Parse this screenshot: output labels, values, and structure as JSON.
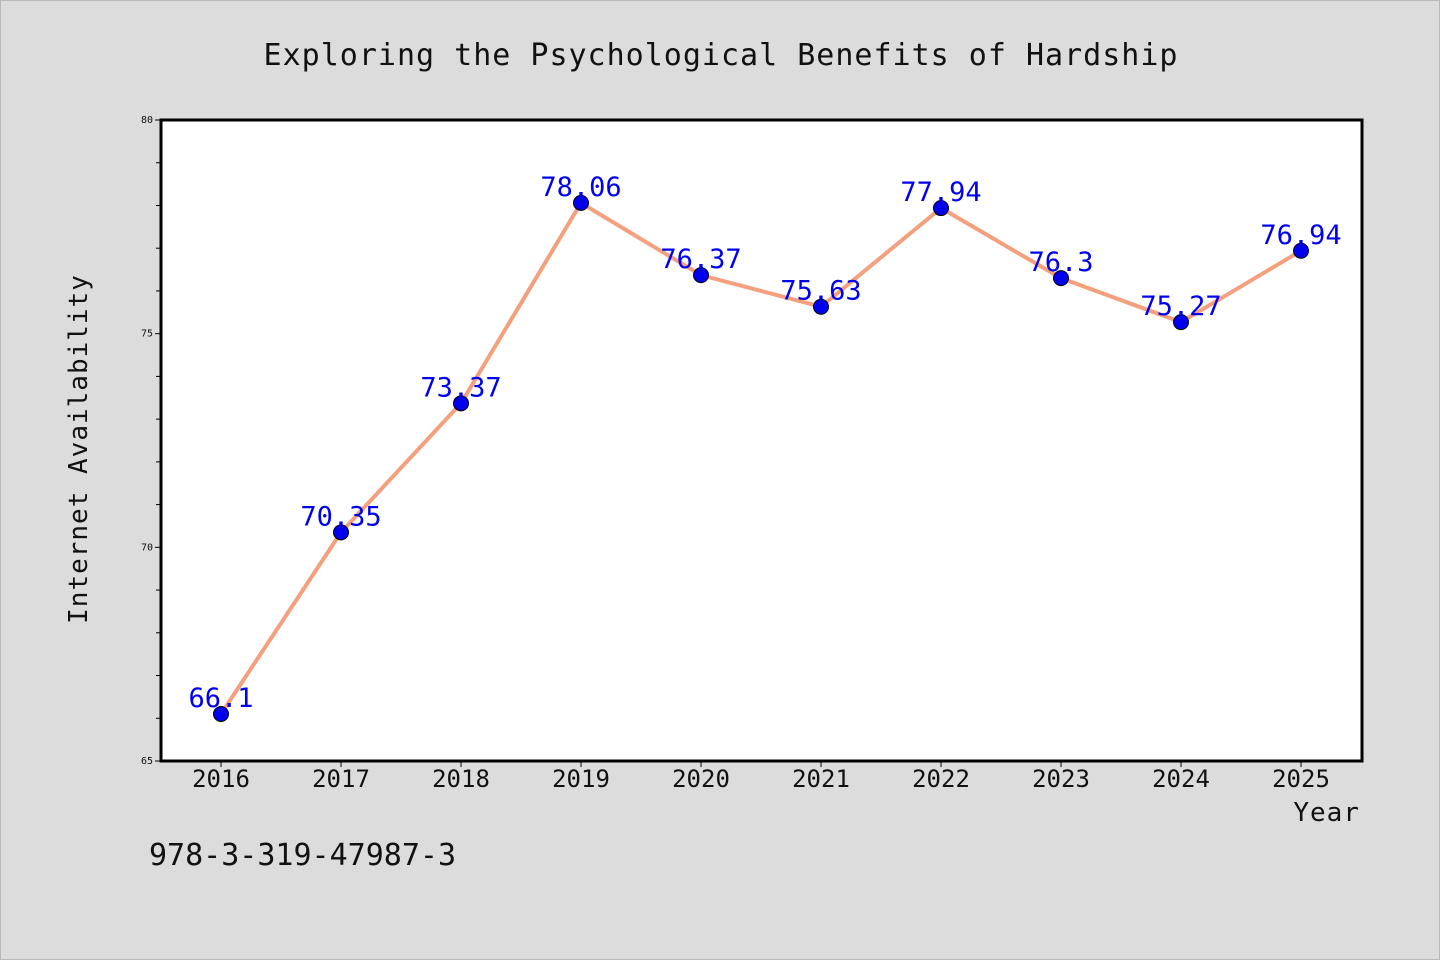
{
  "chart_data": {
    "type": "line",
    "title": "Exploring the Psychological Benefits of Hardship",
    "xlabel": "Year",
    "ylabel": "Internet Availability",
    "categories": [
      "2016",
      "2017",
      "2018",
      "2019",
      "2020",
      "2021",
      "2022",
      "2023",
      "2024",
      "2025"
    ],
    "series": [
      {
        "values": [
          66.1,
          70.35,
          73.37,
          78.06,
          76.37,
          75.63,
          77.94,
          76.3,
          75.27,
          76.94
        ],
        "data_labels": [
          "66.1",
          "70.35",
          "73.37",
          "78.06",
          "76.37",
          "75.63",
          "77.94",
          "76.3",
          "75.27",
          "76.94"
        ],
        "line_color": "#f4a07e",
        "marker_color": "#0000ee",
        "label_color": "#0000ee"
      }
    ],
    "ylim": [
      65,
      80
    ],
    "yticks": [
      "65",
      "70",
      "75",
      "80"
    ],
    "yminor_step": 1,
    "grid": false,
    "legend": "none"
  },
  "annotation": {
    "text": "978-3-319-47987-3"
  },
  "colors": {
    "background": "#dcdcdc",
    "plot_background": "#ffffff",
    "axis": "#000000"
  }
}
